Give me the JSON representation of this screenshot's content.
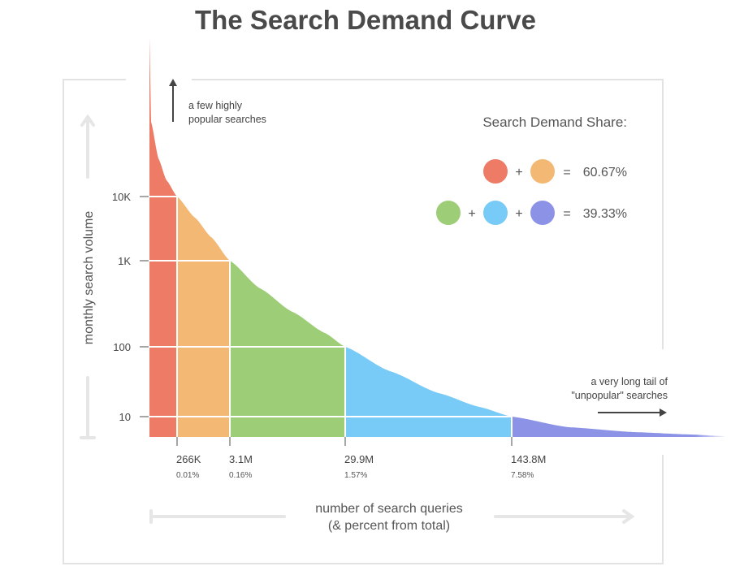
{
  "chart_data": {
    "type": "area",
    "title": "The Search Demand Curve",
    "ylabel": "monthly search volume",
    "xlabel_lines": [
      "number of search queries",
      "(& percent from total)"
    ],
    "y_scale": "log",
    "y_ticks": [
      {
        "value": 10000,
        "label": "10K"
      },
      {
        "value": 1000,
        "label": "1K"
      },
      {
        "value": 100,
        "label": "100"
      },
      {
        "value": 10,
        "label": "10"
      }
    ],
    "x_breakpoints": [
      {
        "label": "266K",
        "percent": "0.01%"
      },
      {
        "label": "3.1M",
        "percent": "0.16%"
      },
      {
        "label": "29.9M",
        "percent": "1.57%"
      },
      {
        "label": "143.8M",
        "percent": "7.58%"
      }
    ],
    "segments": [
      {
        "color": "#ee7b65"
      },
      {
        "color": "#f3b873"
      },
      {
        "color": "#9dcd76"
      },
      {
        "color": "#78caf7"
      },
      {
        "color": "#8c92e6"
      }
    ],
    "annotations": {
      "head": [
        "a few highly",
        "popular searches"
      ],
      "tail": [
        "a very long tail of",
        "\"unpopular\" searches"
      ]
    },
    "legend": {
      "title": "Search Demand Share:",
      "rows": [
        {
          "colors": [
            "#ee7b65",
            "#f3b873"
          ],
          "plus": "+",
          "equals": "=",
          "value": "60.67%"
        },
        {
          "colors": [
            "#9dcd76",
            "#78caf7",
            "#8c92e6"
          ],
          "plus": "+",
          "equals": "=",
          "value": "39.33%"
        }
      ]
    }
  }
}
